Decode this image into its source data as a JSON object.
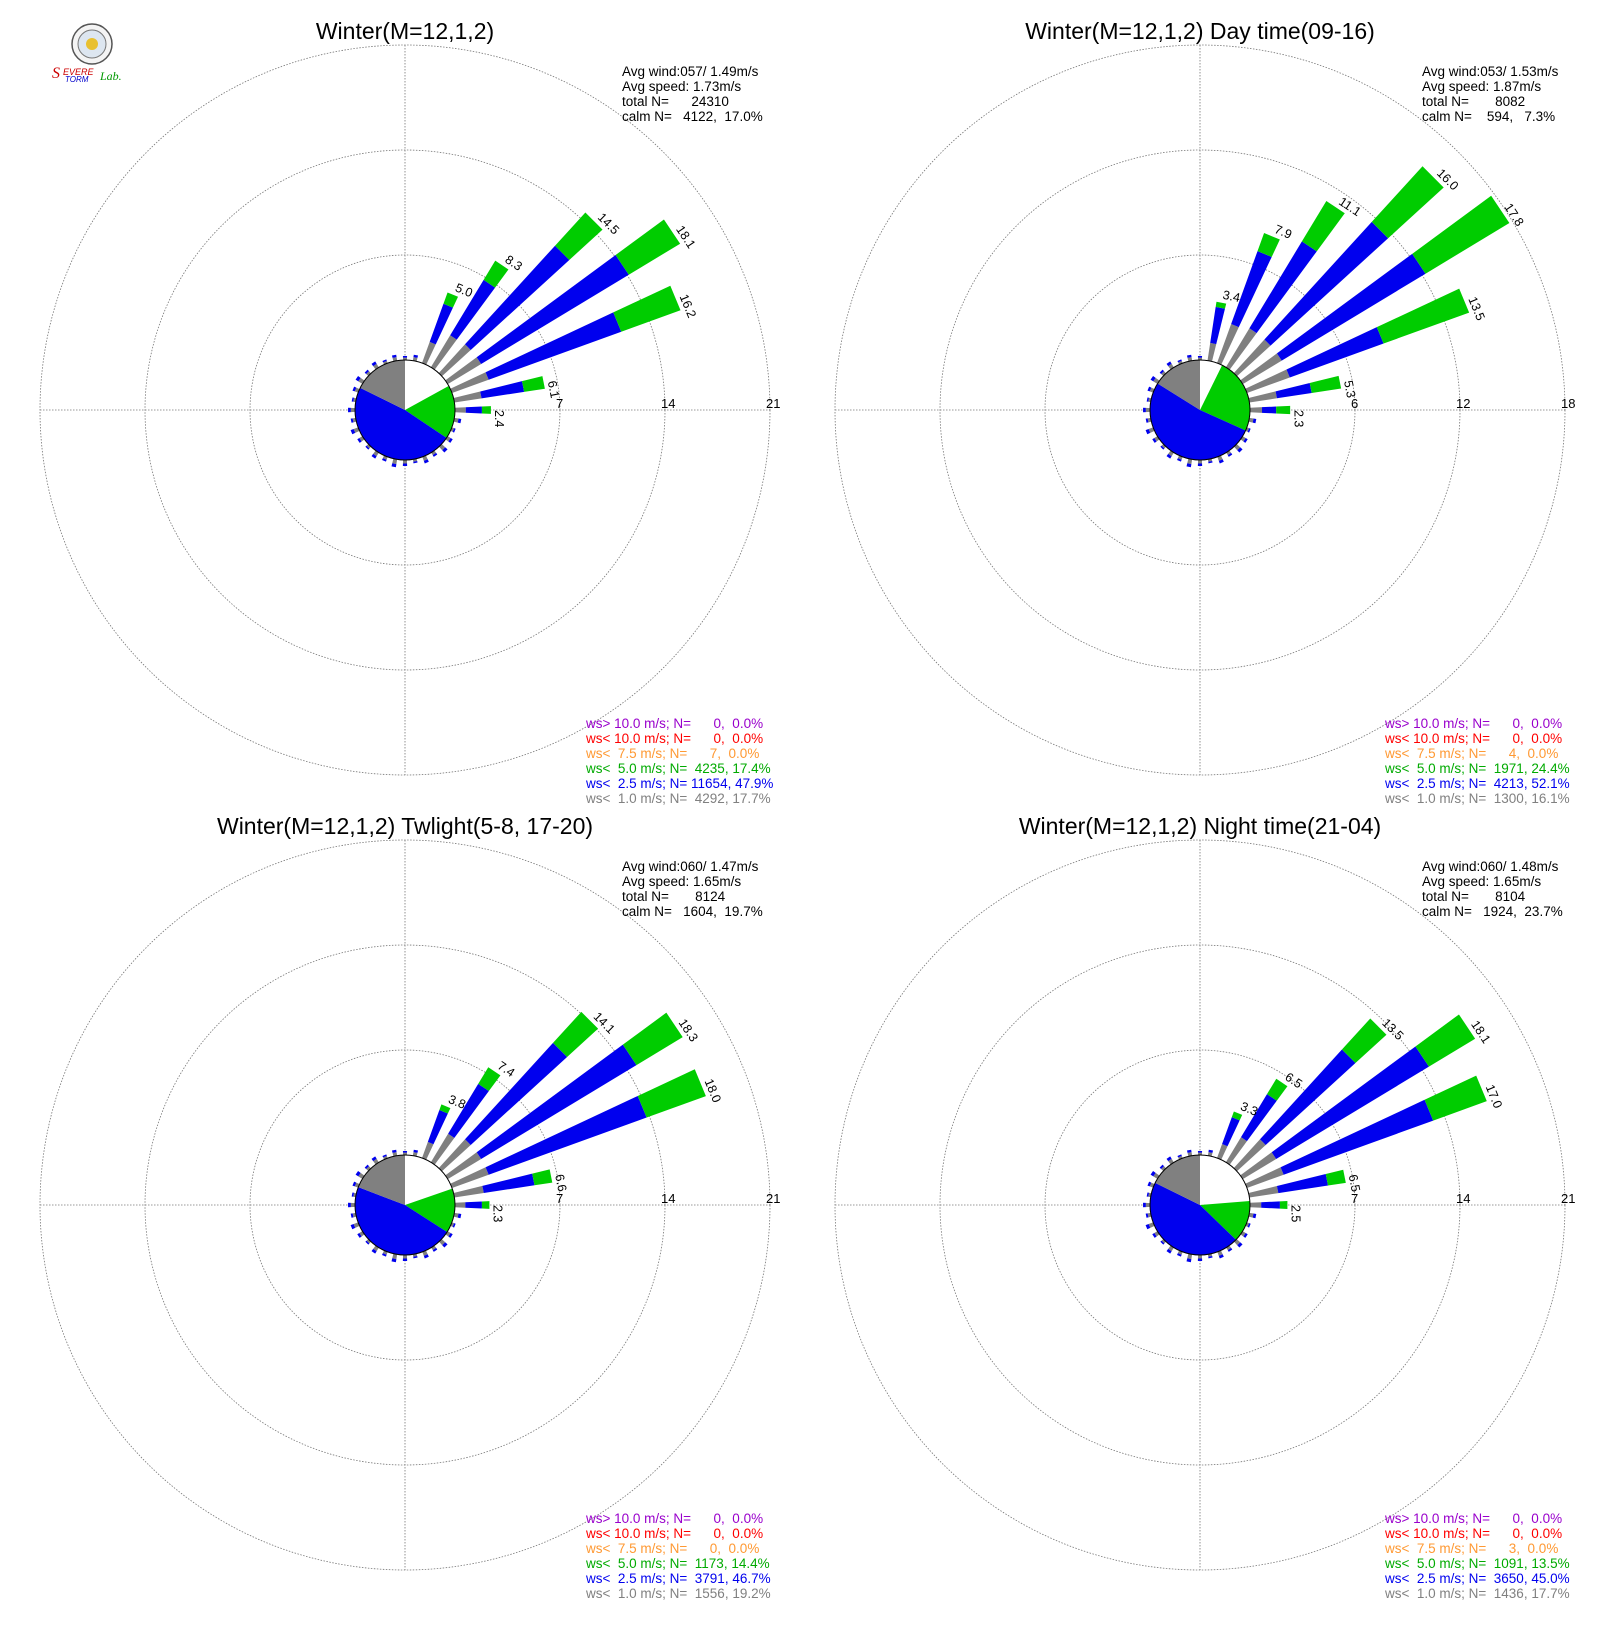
{
  "logo": {
    "text": "Severe Storm Lab."
  },
  "colors": {
    "calm": "#ffffff",
    "lt1": "#808080",
    "lt2_5": "#0000ee",
    "lt5": "#00cc00",
    "lt7_5": "#ff9933",
    "lt10": "#ff0000",
    "gt10": "#9900cc",
    "grid": "#777777"
  },
  "panels": [
    {
      "title": "Winter(M=12,1,2)",
      "stats": [
        "Avg wind:057/ 1.49m/s",
        "Avg speed: 1.73m/s",
        "total N=      24310",
        "calm N=   4122,  17.0%"
      ],
      "legend": [
        {
          "text": "ws> 10.0 m/s; N=      0,  0.0%",
          "color": "#9900cc"
        },
        {
          "text": "ws< 10.0 m/s; N=      0,  0.0%",
          "color": "#ff0000"
        },
        {
          "text": "ws<  7.5 m/s; N=      7,  0.0%",
          "color": "#ff9933"
        },
        {
          "text": "ws<  5.0 m/s; N=  4235, 17.4%",
          "color": "#00aa00"
        },
        {
          "text": "ws<  2.5 m/s; N= 11654, 47.9%",
          "color": "#0000ee"
        },
        {
          "text": "ws<  1.0 m/s; N=  4292, 17.7%",
          "color": "#808080"
        }
      ]
    },
    {
      "title": "Winter(M=12,1,2) Day time(09-16)",
      "stats": [
        "Avg wind:053/ 1.53m/s",
        "Avg speed: 1.87m/s",
        "total N=       8082",
        "calm N=    594,   7.3%"
      ],
      "legend": [
        {
          "text": "ws> 10.0 m/s; N=      0,  0.0%",
          "color": "#9900cc"
        },
        {
          "text": "ws< 10.0 m/s; N=      0,  0.0%",
          "color": "#ff0000"
        },
        {
          "text": "ws<  7.5 m/s; N=      4,  0.0%",
          "color": "#ff9933"
        },
        {
          "text": "ws<  5.0 m/s; N=  1971, 24.4%",
          "color": "#00aa00"
        },
        {
          "text": "ws<  2.5 m/s; N=  4213, 52.1%",
          "color": "#0000ee"
        },
        {
          "text": "ws<  1.0 m/s; N=  1300, 16.1%",
          "color": "#808080"
        }
      ]
    },
    {
      "title": "Winter(M=12,1,2) Twlight(5-8, 17-20)",
      "stats": [
        "Avg wind:060/ 1.47m/s",
        "Avg speed: 1.65m/s",
        "total N=       8124",
        "calm N=   1604,  19.7%"
      ],
      "legend": [
        {
          "text": "ws> 10.0 m/s; N=      0,  0.0%",
          "color": "#9900cc"
        },
        {
          "text": "ws< 10.0 m/s; N=      0,  0.0%",
          "color": "#ff0000"
        },
        {
          "text": "ws<  7.5 m/s; N=      0,  0.0%",
          "color": "#ff9933"
        },
        {
          "text": "ws<  5.0 m/s; N=  1173, 14.4%",
          "color": "#00aa00"
        },
        {
          "text": "ws<  2.5 m/s; N=  3791, 46.7%",
          "color": "#0000ee"
        },
        {
          "text": "ws<  1.0 m/s; N=  1556, 19.2%",
          "color": "#808080"
        }
      ]
    },
    {
      "title": "Winter(M=12,1,2) Night time(21-04)",
      "stats": [
        "Avg wind:060/ 1.48m/s",
        "Avg speed: 1.65m/s",
        "total N=       8104",
        "calm N=   1924,  23.7%"
      ],
      "legend": [
        {
          "text": "ws> 10.0 m/s; N=      0,  0.0%",
          "color": "#9900cc"
        },
        {
          "text": "ws< 10.0 m/s; N=      0,  0.0%",
          "color": "#ff0000"
        },
        {
          "text": "ws<  7.5 m/s; N=      3,  0.0%",
          "color": "#ff9933"
        },
        {
          "text": "ws<  5.0 m/s; N=  1091, 13.5%",
          "color": "#00aa00"
        },
        {
          "text": "ws<  2.5 m/s; N=  3650, 45.0%",
          "color": "#0000ee"
        },
        {
          "text": "ws<  1.0 m/s; N=  1436, 17.7%",
          "color": "#808080"
        }
      ]
    }
  ],
  "chart_data": [
    {
      "type": "wind-rose",
      "title": "Winter(M=12,1,2)",
      "ring_ticks": [
        "7",
        "14",
        "21"
      ],
      "rmax": 21,
      "calm_percent": 17.0,
      "center_pie_percent": {
        "calm": 17.0,
        "lt1": 17.7,
        "lt2_5": 47.9,
        "lt5": 17.4
      },
      "sectors": [
        {
          "dir_deg": 90,
          "total": 2.4,
          "green": 0.6
        },
        {
          "dir_deg": 78.75,
          "total": 6.1,
          "green": 1.4
        },
        {
          "dir_deg": 67.5,
          "total": 16.2,
          "green": 4.2
        },
        {
          "dir_deg": 56.25,
          "total": 18.1,
          "green": 4.0
        },
        {
          "dir_deg": 45,
          "total": 14.5,
          "green": 3.0
        },
        {
          "dir_deg": 33.75,
          "total": 8.3,
          "green": 1.5
        },
        {
          "dir_deg": 22.5,
          "total": 5.0,
          "green": 0.8
        }
      ],
      "labelled_totals": [
        "2.4",
        "6.1",
        "16.2",
        "18.1",
        "14.5",
        "8.3",
        "5.0"
      ]
    },
    {
      "type": "wind-rose",
      "title": "Winter(M=12,1,2) Day time(09-16)",
      "ring_ticks": [
        "6",
        "12",
        "18"
      ],
      "rmax": 18,
      "calm_percent": 7.3,
      "center_pie_percent": {
        "calm": 7.3,
        "lt1": 16.1,
        "lt2_5": 52.1,
        "lt5": 24.4
      },
      "sectors": [
        {
          "dir_deg": 90,
          "total": 2.3,
          "green": 0.8
        },
        {
          "dir_deg": 78.75,
          "total": 5.3,
          "green": 1.7
        },
        {
          "dir_deg": 67.5,
          "total": 13.5,
          "green": 5.2
        },
        {
          "dir_deg": 56.25,
          "total": 17.8,
          "green": 5.6
        },
        {
          "dir_deg": 45,
          "total": 16.0,
          "green": 4.3
        },
        {
          "dir_deg": 33.75,
          "total": 11.1,
          "green": 2.7
        },
        {
          "dir_deg": 22.5,
          "total": 7.9,
          "green": 1.1
        },
        {
          "dir_deg": 11.25,
          "total": 3.4,
          "green": 0.3
        }
      ],
      "labelled_totals": [
        "2.3",
        "5.3",
        "13.5",
        "17.8",
        "16.0",
        "11.1",
        "7.9",
        "3.4"
      ]
    },
    {
      "type": "wind-rose",
      "title": "Winter(M=12,1,2) Twlight(5-8, 17-20)",
      "ring_ticks": [
        "7",
        "14",
        "21"
      ],
      "rmax": 21,
      "calm_percent": 19.7,
      "center_pie_percent": {
        "calm": 19.7,
        "lt1": 19.2,
        "lt2_5": 46.7,
        "lt5": 14.4
      },
      "sectors": [
        {
          "dir_deg": 90,
          "total": 2.3,
          "green": 0.5
        },
        {
          "dir_deg": 78.75,
          "total": 6.6,
          "green": 1.2
        },
        {
          "dir_deg": 67.5,
          "total": 18.0,
          "green": 4.2
        },
        {
          "dir_deg": 56.25,
          "total": 18.3,
          "green": 3.6
        },
        {
          "dir_deg": 45,
          "total": 14.1,
          "green": 2.8
        },
        {
          "dir_deg": 33.75,
          "total": 7.4,
          "green": 1.3
        },
        {
          "dir_deg": 22.5,
          "total": 3.8,
          "green": 0.4
        }
      ],
      "labelled_totals": [
        "2.3",
        "6.6",
        "18.0",
        "18.3",
        "14.1",
        "7.4",
        "3.8"
      ]
    },
    {
      "type": "wind-rose",
      "title": "Winter(M=12,1,2) Night time(21-04)",
      "ring_ticks": [
        "7",
        "14",
        "21"
      ],
      "rmax": 21,
      "calm_percent": 23.7,
      "center_pie_percent": {
        "calm": 23.7,
        "lt1": 17.7,
        "lt2_5": 45.0,
        "lt5": 13.5
      },
      "sectors": [
        {
          "dir_deg": 90,
          "total": 2.5,
          "green": 0.5
        },
        {
          "dir_deg": 78.75,
          "total": 6.5,
          "green": 1.2
        },
        {
          "dir_deg": 67.5,
          "total": 17.0,
          "green": 3.8
        },
        {
          "dir_deg": 56.25,
          "total": 18.1,
          "green": 3.6
        },
        {
          "dir_deg": 45,
          "total": 13.5,
          "green": 2.8
        },
        {
          "dir_deg": 33.75,
          "total": 6.5,
          "green": 1.2
        },
        {
          "dir_deg": 22.5,
          "total": 3.3,
          "green": 0.4
        }
      ],
      "labelled_totals": [
        "2.5",
        "6.5",
        "17.0",
        "18.1",
        "13.5",
        "6.5",
        "3.3"
      ]
    }
  ]
}
